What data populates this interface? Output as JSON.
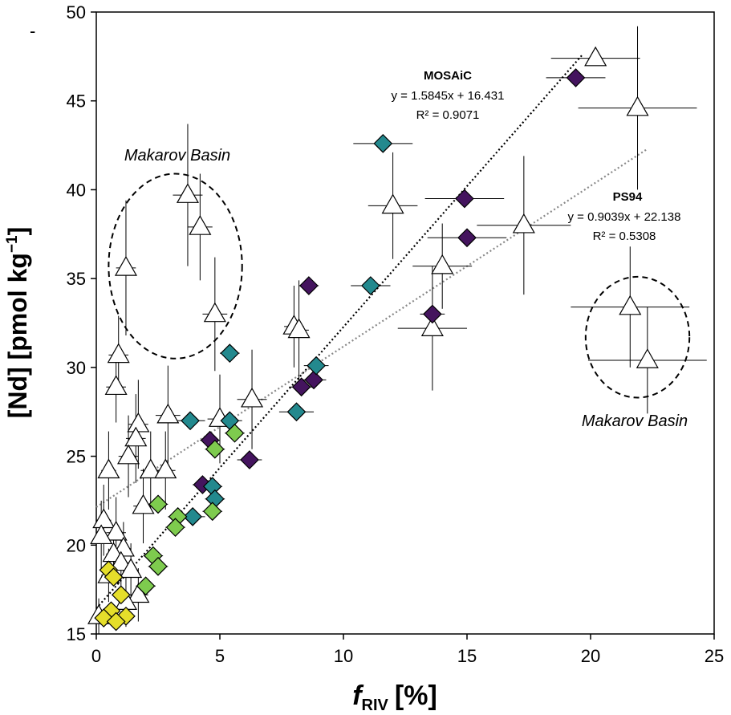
{
  "chart_data": {
    "type": "scatter",
    "xlabel_main": "f",
    "xlabel_sub": "RIV",
    "xlabel_unit": "[%]",
    "ylabel_main": "[Nd] [pmol kg",
    "ylabel_sup": "−1",
    "ylabel_close": "]",
    "xlim": [
      0,
      25
    ],
    "ylim": [
      15,
      50
    ],
    "xticks": [
      0,
      5,
      10,
      15,
      20,
      25
    ],
    "yticks": [
      15,
      20,
      25,
      30,
      35,
      40,
      45,
      50
    ],
    "corner_mark": "-",
    "regressions": [
      {
        "name": "MOSAiC",
        "equation": "y = 1.5845x + 16.431",
        "r2": "R² = 0.9071",
        "slope": 1.5845,
        "intercept": 16.431,
        "x_range": [
          0,
          19.7
        ],
        "color": "#000000"
      },
      {
        "name": "PS94",
        "equation": "y = 0.9039x + 22.138",
        "r2": "R² = 0.5308",
        "slope": 0.9039,
        "intercept": 22.138,
        "x_range": [
          0,
          22.3
        ],
        "color": "#888888"
      }
    ],
    "annotations": [
      {
        "text": "Makarov Basin",
        "region": "upper-left"
      },
      {
        "text": "Makarov Basin",
        "region": "lower-right"
      }
    ],
    "basin_ellipses": [
      {
        "cx": 3.2,
        "cy": 35.7,
        "rx": 2.7,
        "ry": 5.2
      },
      {
        "cx": 21.9,
        "cy": 31.7,
        "rx": 2.1,
        "ry": 3.4
      }
    ],
    "series": [
      {
        "name": "PS94",
        "marker": "triangle",
        "color": "#ffffff",
        "points": [
          {
            "x": 20.2,
            "y": 47.4,
            "xerr": 1.8,
            "yerr": 0
          },
          {
            "x": 21.9,
            "y": 44.6,
            "xerr": 2.4,
            "yerr": 4.6
          },
          {
            "x": 12.0,
            "y": 39.1,
            "xerr": 1.0,
            "yerr": 3.0
          },
          {
            "x": 17.3,
            "y": 38.0,
            "xerr": 1.9,
            "yerr": 3.9
          },
          {
            "x": 14.0,
            "y": 35.7,
            "xerr": 1.2,
            "yerr": 2.4
          },
          {
            "x": 13.6,
            "y": 32.2,
            "xerr": 1.4,
            "yerr": 3.5
          },
          {
            "x": 21.6,
            "y": 33.4,
            "xerr": 2.4,
            "yerr": 3.4
          },
          {
            "x": 22.3,
            "y": 30.4,
            "xerr": 2.4,
            "yerr": 3.0
          },
          {
            "x": 3.7,
            "y": 39.7,
            "xerr": 0.6,
            "yerr": 4.0
          },
          {
            "x": 4.2,
            "y": 37.9,
            "xerr": 0.5,
            "yerr": 3.0
          },
          {
            "x": 1.2,
            "y": 35.6,
            "xerr": 0.4,
            "yerr": 3.8
          },
          {
            "x": 4.8,
            "y": 33.0,
            "xerr": 0.5,
            "yerr": 3.2
          },
          {
            "x": 8.0,
            "y": 32.3,
            "xerr": 0.4,
            "yerr": 2.3
          },
          {
            "x": 8.2,
            "y": 32.1,
            "xerr": 0.4,
            "yerr": 2.8
          },
          {
            "x": 0.9,
            "y": 30.7,
            "xerr": 0.4,
            "yerr": 2.2
          },
          {
            "x": 0.8,
            "y": 28.9,
            "xerr": 0.4,
            "yerr": 2.0
          },
          {
            "x": 6.3,
            "y": 28.2,
            "xerr": 0.6,
            "yerr": 2.8
          },
          {
            "x": 2.9,
            "y": 27.3,
            "xerr": 0.5,
            "yerr": 2.8
          },
          {
            "x": 5.0,
            "y": 27.1,
            "xerr": 0.5,
            "yerr": 2.5
          },
          {
            "x": 1.7,
            "y": 26.8,
            "xerr": 0.4,
            "yerr": 2.5
          },
          {
            "x": 1.6,
            "y": 26.0,
            "xerr": 0.4,
            "yerr": 2.5
          },
          {
            "x": 1.3,
            "y": 25.0,
            "xerr": 0.4,
            "yerr": 2.3
          },
          {
            "x": 0.5,
            "y": 24.2,
            "xerr": 0.3,
            "yerr": 2.2
          },
          {
            "x": 2.2,
            "y": 24.2,
            "xerr": 0.4,
            "yerr": 2.2
          },
          {
            "x": 2.8,
            "y": 24.2,
            "xerr": 0.4,
            "yerr": 2.2
          },
          {
            "x": 1.9,
            "y": 22.2,
            "xerr": 0.4,
            "yerr": 2.1
          },
          {
            "x": 0.3,
            "y": 21.4,
            "xerr": 0.3,
            "yerr": 2.0
          },
          {
            "x": 0.8,
            "y": 20.7,
            "xerr": 0.4,
            "yerr": 2.0
          },
          {
            "x": 0.2,
            "y": 20.5,
            "xerr": 0.2,
            "yerr": 2.0
          },
          {
            "x": 1.1,
            "y": 19.8,
            "xerr": 0.3,
            "yerr": 1.5
          },
          {
            "x": 0.7,
            "y": 19.5,
            "xerr": 0.3,
            "yerr": 1.5
          },
          {
            "x": 1.0,
            "y": 19.0,
            "xerr": 0.3,
            "yerr": 1.5
          },
          {
            "x": 1.4,
            "y": 18.6,
            "xerr": 0.3,
            "yerr": 1.5
          },
          {
            "x": 0.5,
            "y": 18.3,
            "xerr": 0.3,
            "yerr": 1.5
          },
          {
            "x": 1.7,
            "y": 17.2,
            "xerr": 0.4,
            "yerr": 1.5
          },
          {
            "x": 1.2,
            "y": 16.8,
            "xerr": 0.3,
            "yerr": 1.4
          },
          {
            "x": 0.1,
            "y": 16.0,
            "xerr": 0.1,
            "yerr": 1.0
          }
        ]
      },
      {
        "name": "MOSAiC (purple)",
        "marker": "diamond",
        "color": "#44145e",
        "points": [
          {
            "x": 19.4,
            "y": 46.3,
            "xerr": 1.2,
            "yerr": 0
          },
          {
            "x": 14.9,
            "y": 39.5,
            "xerr": 1.6,
            "yerr": 0
          },
          {
            "x": 15.0,
            "y": 37.3,
            "xerr": 1.6,
            "yerr": 0
          },
          {
            "x": 8.6,
            "y": 34.6,
            "xerr": 0.4,
            "yerr": 0
          },
          {
            "x": 13.6,
            "y": 33.0,
            "xerr": 0.5,
            "yerr": 0
          },
          {
            "x": 8.8,
            "y": 29.3,
            "xerr": 0.5,
            "yerr": 0
          },
          {
            "x": 8.3,
            "y": 28.9,
            "xerr": 0.5,
            "yerr": 0
          },
          {
            "x": 4.6,
            "y": 25.9,
            "xerr": 0.4,
            "yerr": 0
          },
          {
            "x": 6.2,
            "y": 24.8,
            "xerr": 0.5,
            "yerr": 0
          },
          {
            "x": 4.3,
            "y": 23.4,
            "xerr": 0.4,
            "yerr": 0
          }
        ]
      },
      {
        "name": "MOSAiC (teal)",
        "marker": "diamond",
        "color": "#23898e",
        "points": [
          {
            "x": 11.6,
            "y": 42.6,
            "xerr": 1.2,
            "yerr": 0
          },
          {
            "x": 11.1,
            "y": 34.6,
            "xerr": 0.8,
            "yerr": 0
          },
          {
            "x": 5.4,
            "y": 30.8,
            "xerr": 0.4,
            "yerr": 0
          },
          {
            "x": 8.9,
            "y": 30.1,
            "xerr": 0.5,
            "yerr": 0
          },
          {
            "x": 8.1,
            "y": 27.5,
            "xerr": 0.7,
            "yerr": 0
          },
          {
            "x": 3.8,
            "y": 27.0,
            "xerr": 0.6,
            "yerr": 0
          },
          {
            "x": 5.4,
            "y": 27.0,
            "xerr": 0.5,
            "yerr": 0
          },
          {
            "x": 4.7,
            "y": 23.3,
            "xerr": 0.4,
            "yerr": 0
          },
          {
            "x": 4.8,
            "y": 22.6,
            "xerr": 0.4,
            "yerr": 0
          },
          {
            "x": 3.9,
            "y": 21.6,
            "xerr": 0.5,
            "yerr": 0
          }
        ]
      },
      {
        "name": "MOSAiC (green)",
        "marker": "diamond",
        "color": "#7ecb4e",
        "points": [
          {
            "x": 5.6,
            "y": 26.3,
            "xerr": 0.4,
            "yerr": 0
          },
          {
            "x": 4.8,
            "y": 25.4,
            "xerr": 0.4,
            "yerr": 0
          },
          {
            "x": 2.5,
            "y": 22.3,
            "xerr": 0.4,
            "yerr": 0
          },
          {
            "x": 3.3,
            "y": 21.6,
            "xerr": 0.4,
            "yerr": 0
          },
          {
            "x": 4.7,
            "y": 21.9,
            "xerr": 0.4,
            "yerr": 0
          },
          {
            "x": 3.2,
            "y": 21.0,
            "xerr": 0.4,
            "yerr": 0
          },
          {
            "x": 2.3,
            "y": 19.4,
            "xerr": 0.4,
            "yerr": 0
          },
          {
            "x": 2.5,
            "y": 18.8,
            "xerr": 0.4,
            "yerr": 0
          },
          {
            "x": 2.0,
            "y": 17.7,
            "xerr": 0.4,
            "yerr": 0
          }
        ]
      },
      {
        "name": "MOSAiC (yellow)",
        "marker": "diamond",
        "color": "#e5de2b",
        "points": [
          {
            "x": 0.5,
            "y": 18.6,
            "xerr": 0.3,
            "yerr": 0
          },
          {
            "x": 0.7,
            "y": 18.2,
            "xerr": 0.3,
            "yerr": 0
          },
          {
            "x": 1.0,
            "y": 17.2,
            "xerr": 0.3,
            "yerr": 0
          },
          {
            "x": 0.6,
            "y": 16.3,
            "xerr": 0.3,
            "yerr": 0
          },
          {
            "x": 1.2,
            "y": 16.0,
            "xerr": 0.3,
            "yerr": 0
          },
          {
            "x": 0.3,
            "y": 15.9,
            "xerr": 0.3,
            "yerr": 0
          },
          {
            "x": 0.8,
            "y": 15.7,
            "xerr": 0.3,
            "yerr": 0
          }
        ]
      }
    ]
  }
}
